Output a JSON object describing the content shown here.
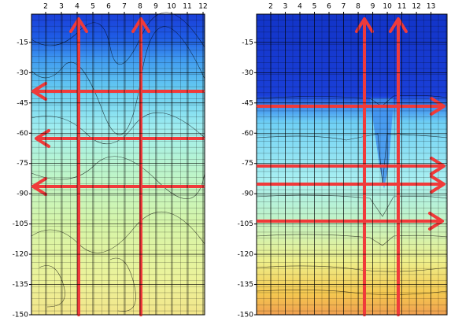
{
  "chart_data": [
    {
      "type": "contour",
      "xlim": [
        1.1,
        12.1
      ],
      "xticks": [
        2,
        3,
        4,
        5,
        6,
        7,
        8,
        9,
        10,
        11,
        12
      ],
      "ylim": [
        -150,
        -1
      ],
      "yticks": [
        -15,
        -30,
        -45,
        -60,
        -75,
        -90,
        -105,
        -120,
        -135,
        -150
      ],
      "grid": true
    },
    {
      "type": "contour",
      "xlim": [
        1.03,
        14.1
      ],
      "xticks": [
        2,
        3,
        4,
        5,
        6,
        7,
        8,
        9,
        10,
        11,
        12,
        13
      ],
      "ylim": [
        -150,
        -1
      ],
      "yticks": [
        -15,
        -30,
        -45,
        -60,
        -75,
        -90,
        -105,
        -120,
        -135,
        -150
      ],
      "grid": true
    }
  ]
}
